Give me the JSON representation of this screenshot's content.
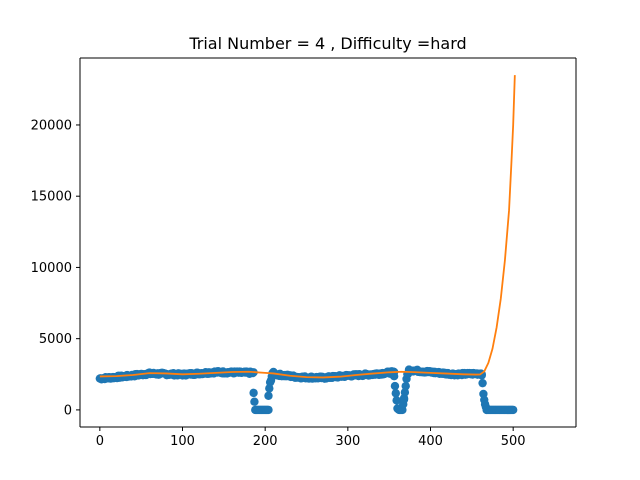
{
  "chart_data": {
    "type": "scatter",
    "title": "Trial Number = 4  , Difficulty =hard",
    "xlabel": "",
    "ylabel": "",
    "xlim": [
      -24,
      576
    ],
    "ylim": [
      -1200,
      24700
    ],
    "x_ticks": [
      0,
      100,
      200,
      300,
      400,
      500
    ],
    "y_ticks": [
      0,
      5000,
      10000,
      15000,
      20000
    ],
    "grid": false,
    "legend": "none",
    "series": [
      {
        "kind": "scatter",
        "color": "#1f77b4",
        "segments": [
          {
            "x_start": 0,
            "x_end": 186,
            "step": 1,
            "anchors": [
              [
                0,
                2200
              ],
              [
                30,
                2350
              ],
              [
                60,
                2550
              ],
              [
                100,
                2480
              ],
              [
                140,
                2650
              ],
              [
                186,
                2600
              ]
            ]
          },
          {
            "x_start": 186,
            "x_end": 204,
            "step": 1,
            "anchors": [
              [
                186,
                1150
              ],
              [
                188,
                0
              ],
              [
                204,
                0
              ]
            ]
          },
          {
            "x_start": 204,
            "x_end": 212,
            "step": 1,
            "anchors": [
              [
                204,
                1000
              ],
              [
                206,
                1900
              ],
              [
                209,
                2600
              ],
              [
                212,
                2550
              ]
            ]
          },
          {
            "x_start": 212,
            "x_end": 356,
            "step": 1,
            "anchors": [
              [
                212,
                2500
              ],
              [
                240,
                2300
              ],
              [
                270,
                2250
              ],
              [
                300,
                2400
              ],
              [
                330,
                2500
              ],
              [
                356,
                2650
              ]
            ]
          },
          {
            "x_start": 356,
            "x_end": 368,
            "step": 1,
            "anchors": [
              [
                356,
                2300
              ],
              [
                358,
                1200
              ],
              [
                360,
                100
              ],
              [
                362,
                0
              ],
              [
                366,
                0
              ],
              [
                368,
                800
              ]
            ]
          },
          {
            "x_start": 368,
            "x_end": 374,
            "step": 1,
            "anchors": [
              [
                368,
                800
              ],
              [
                370,
                1700
              ],
              [
                372,
                2500
              ],
              [
                374,
                2700
              ]
            ]
          },
          {
            "x_start": 374,
            "x_end": 462,
            "step": 1,
            "anchors": [
              [
                374,
                2800
              ],
              [
                400,
                2650
              ],
              [
                430,
                2500
              ],
              [
                462,
                2550
              ]
            ]
          },
          {
            "x_start": 462,
            "x_end": 468,
            "step": 1,
            "anchors": [
              [
                462,
                2500
              ],
              [
                464,
                1100
              ],
              [
                466,
                400
              ],
              [
                468,
                0
              ]
            ]
          },
          {
            "x_start": 468,
            "x_end": 500,
            "step": 1,
            "anchors": [
              [
                468,
                0
              ],
              [
                500,
                0
              ]
            ]
          }
        ]
      },
      {
        "kind": "line",
        "color": "#ff7f0e",
        "points": [
          [
            0,
            2350
          ],
          [
            20,
            2370
          ],
          [
            40,
            2450
          ],
          [
            60,
            2580
          ],
          [
            80,
            2560
          ],
          [
            100,
            2500
          ],
          [
            120,
            2540
          ],
          [
            140,
            2600
          ],
          [
            160,
            2660
          ],
          [
            180,
            2680
          ],
          [
            190,
            2640
          ],
          [
            200,
            2600
          ],
          [
            210,
            2560
          ],
          [
            230,
            2400
          ],
          [
            250,
            2300
          ],
          [
            270,
            2280
          ],
          [
            290,
            2330
          ],
          [
            310,
            2450
          ],
          [
            330,
            2550
          ],
          [
            350,
            2640
          ],
          [
            365,
            2680
          ],
          [
            380,
            2650
          ],
          [
            400,
            2600
          ],
          [
            420,
            2550
          ],
          [
            440,
            2500
          ],
          [
            455,
            2480
          ],
          [
            460,
            2490
          ],
          [
            465,
            2700
          ],
          [
            470,
            3300
          ],
          [
            475,
            4300
          ],
          [
            480,
            5800
          ],
          [
            485,
            7800
          ],
          [
            490,
            10500
          ],
          [
            495,
            14000
          ],
          [
            498,
            17500
          ],
          [
            500,
            20000
          ],
          [
            502,
            23500
          ]
        ]
      }
    ]
  }
}
